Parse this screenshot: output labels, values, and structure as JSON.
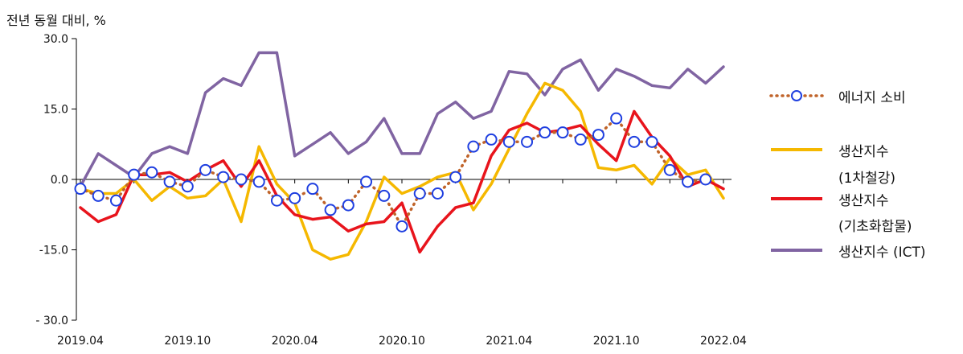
{
  "chart_data": {
    "type": "line",
    "unit_label": "전년 동월 대비, %",
    "ylim": [
      -30,
      30
    ],
    "y_ticks": [
      "30.0",
      "15.0",
      "0.0",
      "-15.0",
      "- 30.0"
    ],
    "x": [
      "2019.04",
      "2019.05",
      "2019.06",
      "2019.07",
      "2019.08",
      "2019.09",
      "2019.10",
      "2019.11",
      "2019.12",
      "2020.01",
      "2020.02",
      "2020.03",
      "2020.04",
      "2020.05",
      "2020.06",
      "2020.07",
      "2020.08",
      "2020.09",
      "2020.10",
      "2020.11",
      "2020.12",
      "2021.01",
      "2021.02",
      "2021.03",
      "2021.04",
      "2021.05",
      "2021.06",
      "2021.07",
      "2021.08",
      "2021.09",
      "2021.10",
      "2021.11",
      "2021.12",
      "2022.01",
      "2022.02",
      "2022.03",
      "2022.04"
    ],
    "x_tick_labels": [
      "2019.04",
      "2019.10",
      "2020.04",
      "2020.10",
      "2021.04",
      "2021.10",
      "2022.04"
    ],
    "grid": false,
    "legend_position": "right",
    "series": [
      {
        "name": "에너지 소비",
        "style": "dotted-circles",
        "color": "#c0642a",
        "marker_color": "#1f3fe0",
        "values": [
          -2,
          -3.5,
          -4.5,
          1,
          1.5,
          -0.5,
          -1.5,
          2,
          0.5,
          0,
          -0.5,
          -4.5,
          -4,
          -2,
          -6.5,
          -5.5,
          -0.5,
          -3.5,
          -10,
          -3,
          -3,
          0.5,
          7,
          8.5,
          8,
          8,
          10,
          10,
          8.5,
          9.5,
          13,
          8,
          8,
          2,
          -0.5,
          0,
          null
        ]
      },
      {
        "name": "생산지수",
        "name_sub": "(1차철강)",
        "style": "line",
        "color": "#f5b800",
        "values": [
          -2,
          -3,
          -3,
          0,
          -4.5,
          -1.5,
          -4,
          -3.5,
          0,
          -9,
          7,
          -1,
          -5,
          -15,
          -17,
          -16,
          -9,
          0.5,
          -3,
          -1.5,
          0.5,
          1.5,
          -6.5,
          -1,
          6.5,
          14,
          20.5,
          19,
          14.5,
          2.5,
          2,
          3,
          -1,
          4.5,
          1,
          2,
          -4
        ]
      },
      {
        "name": "생산지수",
        "name_sub": "(기초화합물)",
        "style": "line",
        "color": "#e8141c",
        "values": [
          -6,
          -9,
          -7.5,
          1,
          1,
          1.5,
          -0.5,
          2,
          4,
          -1.5,
          4,
          -3.5,
          -7.5,
          -8.5,
          -8,
          -11,
          -9.5,
          -9,
          -5,
          -15.5,
          -10,
          -6,
          -5,
          5,
          10.5,
          12,
          10,
          10.5,
          11.5,
          7.5,
          4,
          14.5,
          9,
          5,
          -1.5,
          0,
          -2
        ]
      },
      {
        "name": "생산지수 (ICT)",
        "style": "line",
        "color": "#8064a2",
        "values": [
          -1.5,
          5.5,
          3,
          0.5,
          5.5,
          7,
          5.5,
          18.5,
          21.5,
          20,
          27,
          27,
          5,
          7.5,
          10,
          5.5,
          8,
          13,
          5.5,
          5.5,
          14,
          16.5,
          13,
          14.5,
          23,
          22.5,
          18,
          23.5,
          25.5,
          19,
          23.5,
          22,
          20,
          19.5,
          23.5,
          20.5,
          24
        ]
      }
    ]
  }
}
